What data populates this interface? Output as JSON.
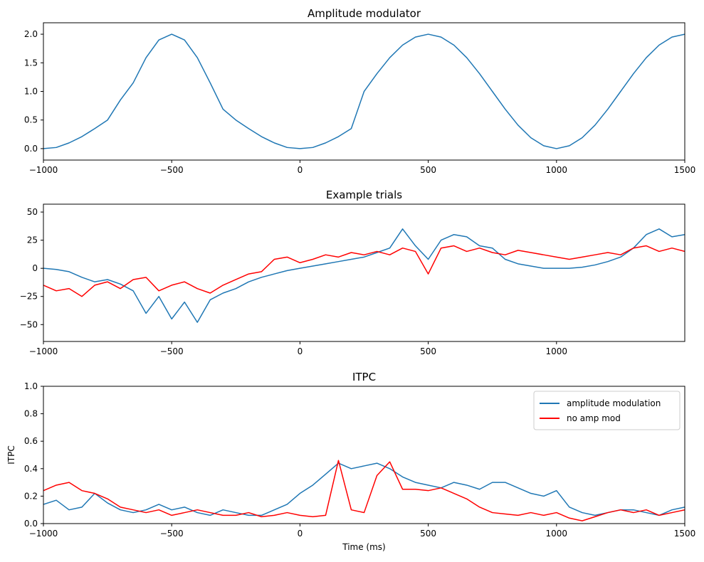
{
  "colors": {
    "blue": "#1f77b4",
    "red": "#ff0000",
    "axis": "#000000"
  },
  "chart_data": [
    {
      "type": "line",
      "title": "Amplitude modulator",
      "xlabel": "",
      "ylabel": "",
      "xlim": [
        -1000,
        1500
      ],
      "ylim": [
        -0.2,
        2.2
      ],
      "xticks": [
        -1000,
        -500,
        0,
        500,
        1000,
        1500
      ],
      "xtick_labels": [
        "−1000",
        "−500",
        "0",
        "500",
        "1000",
        "1500"
      ],
      "yticks": [
        0.0,
        0.5,
        1.0,
        1.5,
        2.0
      ],
      "ytick_labels": [
        "0.0",
        "0.5",
        "1.0",
        "1.5",
        "2.0"
      ],
      "grid": false,
      "series": [
        {
          "color": "#1f77b4",
          "x": [
            -1000,
            -950,
            -900,
            -850,
            -800,
            -750,
            -700,
            -650,
            -600,
            -550,
            -500,
            -450,
            -400,
            -350,
            -300,
            -250,
            -200,
            -150,
            -100,
            -50,
            0,
            50,
            100,
            150,
            200,
            250,
            300,
            350,
            400,
            450,
            500,
            550,
            600,
            650,
            700,
            750,
            800,
            850,
            900,
            950,
            1000,
            1050,
            1100,
            1150,
            1200,
            1250,
            1300,
            1350,
            1400,
            1450,
            1500
          ],
          "values": [
            0.0,
            0.02,
            0.1,
            0.21,
            0.35,
            0.5,
            0.85,
            1.15,
            1.59,
            1.9,
            2.0,
            1.9,
            1.59,
            1.15,
            0.69,
            0.5,
            0.35,
            0.21,
            0.1,
            0.02,
            0.0,
            0.02,
            0.1,
            0.21,
            0.35,
            1.0,
            1.31,
            1.59,
            1.81,
            1.95,
            2.0,
            1.95,
            1.81,
            1.59,
            1.31,
            1.0,
            0.69,
            0.41,
            0.19,
            0.05,
            0.0,
            0.05,
            0.19,
            0.41,
            0.69,
            1.0,
            1.31,
            1.59,
            1.81,
            1.95,
            2.0
          ]
        }
      ]
    },
    {
      "type": "line",
      "title": "Example trials",
      "xlabel": "",
      "ylabel": "",
      "xlim": [
        -1000,
        1500
      ],
      "ylim": [
        -65,
        57
      ],
      "xticks": [
        -1000,
        -500,
        0,
        500,
        1000
      ],
      "xtick_labels": [
        "−1000",
        "−500",
        "0",
        "500",
        "1000"
      ],
      "yticks": [
        -50,
        -25,
        0,
        25,
        50
      ],
      "ytick_labels": [
        "−50",
        "−25",
        "0",
        "25",
        "50"
      ],
      "grid": false,
      "series": [
        {
          "color": "#1f77b4",
          "x": [
            -1000,
            -950,
            -900,
            -850,
            -800,
            -750,
            -700,
            -650,
            -600,
            -550,
            -500,
            -450,
            -400,
            -350,
            -300,
            -250,
            -200,
            -150,
            -100,
            -50,
            0,
            50,
            100,
            150,
            200,
            250,
            300,
            350,
            400,
            450,
            500,
            550,
            600,
            650,
            700,
            750,
            800,
            850,
            900,
            950,
            1000,
            1050,
            1100,
            1150,
            1200,
            1250,
            1300,
            1350,
            1400,
            1450,
            1500
          ],
          "values": [
            0,
            -1,
            -3,
            -8,
            -12,
            -10,
            -14,
            -20,
            -40,
            -25,
            -45,
            -30,
            -48,
            -28,
            -22,
            -18,
            -12,
            -8,
            -5,
            -2,
            0,
            2,
            4,
            6,
            8,
            10,
            14,
            18,
            35,
            20,
            8,
            25,
            30,
            28,
            20,
            18,
            8,
            4,
            2,
            0,
            0,
            0,
            1,
            3,
            6,
            10,
            18,
            30,
            35,
            28,
            30
          ]
        },
        {
          "color": "#ff0000",
          "x": [
            -1000,
            -950,
            -900,
            -850,
            -800,
            -750,
            -700,
            -650,
            -600,
            -550,
            -500,
            -450,
            -400,
            -350,
            -300,
            -250,
            -200,
            -150,
            -100,
            -50,
            0,
            50,
            100,
            150,
            200,
            250,
            300,
            350,
            400,
            450,
            500,
            550,
            600,
            650,
            700,
            750,
            800,
            850,
            900,
            950,
            1000,
            1050,
            1100,
            1150,
            1200,
            1250,
            1300,
            1350,
            1400,
            1450,
            1500
          ],
          "values": [
            -15,
            -20,
            -18,
            -25,
            -15,
            -12,
            -18,
            -10,
            -8,
            -20,
            -15,
            -12,
            -18,
            -22,
            -15,
            -10,
            -5,
            -3,
            8,
            10,
            5,
            8,
            12,
            10,
            14,
            12,
            15,
            12,
            18,
            15,
            -5,
            18,
            20,
            15,
            18,
            14,
            12,
            16,
            14,
            12,
            10,
            8,
            10,
            12,
            14,
            12,
            18,
            20,
            15,
            18,
            15
          ]
        }
      ]
    },
    {
      "type": "line",
      "title": "ITPC",
      "xlabel": "Time (ms)",
      "ylabel": "ITPC",
      "xlim": [
        -1000,
        1500
      ],
      "ylim": [
        0.0,
        1.0
      ],
      "xticks": [
        -1000,
        -500,
        0,
        500,
        1000,
        1500
      ],
      "xtick_labels": [
        "−1000",
        "−500",
        "0",
        "500",
        "1000",
        "1500"
      ],
      "yticks": [
        0.0,
        0.2,
        0.4,
        0.6,
        0.8,
        1.0
      ],
      "ytick_labels": [
        "0.0",
        "0.2",
        "0.4",
        "0.6",
        "0.8",
        "1.0"
      ],
      "grid": false,
      "legend": "top-right",
      "series": [
        {
          "name": "amplitude modulation",
          "color": "#1f77b4",
          "x": [
            -1000,
            -950,
            -900,
            -850,
            -800,
            -750,
            -700,
            -650,
            -600,
            -550,
            -500,
            -450,
            -400,
            -350,
            -300,
            -250,
            -200,
            -150,
            -100,
            -50,
            0,
            50,
            100,
            150,
            200,
            250,
            300,
            350,
            400,
            450,
            500,
            550,
            600,
            650,
            700,
            750,
            800,
            850,
            900,
            950,
            1000,
            1050,
            1100,
            1150,
            1200,
            1250,
            1300,
            1350,
            1400,
            1450,
            1500
          ],
          "values": [
            0.14,
            0.17,
            0.1,
            0.12,
            0.22,
            0.15,
            0.1,
            0.08,
            0.1,
            0.14,
            0.1,
            0.12,
            0.08,
            0.06,
            0.1,
            0.08,
            0.06,
            0.06,
            0.1,
            0.14,
            0.22,
            0.28,
            0.36,
            0.44,
            0.4,
            0.42,
            0.44,
            0.4,
            0.34,
            0.3,
            0.28,
            0.26,
            0.3,
            0.28,
            0.25,
            0.3,
            0.3,
            0.26,
            0.22,
            0.2,
            0.24,
            0.12,
            0.08,
            0.06,
            0.08,
            0.1,
            0.1,
            0.08,
            0.06,
            0.1,
            0.12
          ]
        },
        {
          "name": "no amp mod",
          "color": "#ff0000",
          "x": [
            -1000,
            -950,
            -900,
            -850,
            -800,
            -750,
            -700,
            -650,
            -600,
            -550,
            -500,
            -450,
            -400,
            -350,
            -300,
            -250,
            -200,
            -150,
            -100,
            -50,
            0,
            50,
            100,
            150,
            200,
            250,
            300,
            350,
            400,
            450,
            500,
            550,
            600,
            650,
            700,
            750,
            800,
            850,
            900,
            950,
            1000,
            1050,
            1100,
            1150,
            1200,
            1250,
            1300,
            1350,
            1400,
            1450,
            1500
          ],
          "values": [
            0.24,
            0.28,
            0.3,
            0.24,
            0.22,
            0.18,
            0.12,
            0.1,
            0.08,
            0.1,
            0.06,
            0.08,
            0.1,
            0.08,
            0.06,
            0.06,
            0.08,
            0.05,
            0.06,
            0.08,
            0.06,
            0.05,
            0.06,
            0.46,
            0.1,
            0.08,
            0.35,
            0.45,
            0.25,
            0.25,
            0.24,
            0.26,
            0.22,
            0.18,
            0.12,
            0.08,
            0.07,
            0.06,
            0.08,
            0.06,
            0.08,
            0.04,
            0.02,
            0.05,
            0.08,
            0.1,
            0.08,
            0.1,
            0.06,
            0.08,
            0.1
          ]
        }
      ]
    }
  ]
}
